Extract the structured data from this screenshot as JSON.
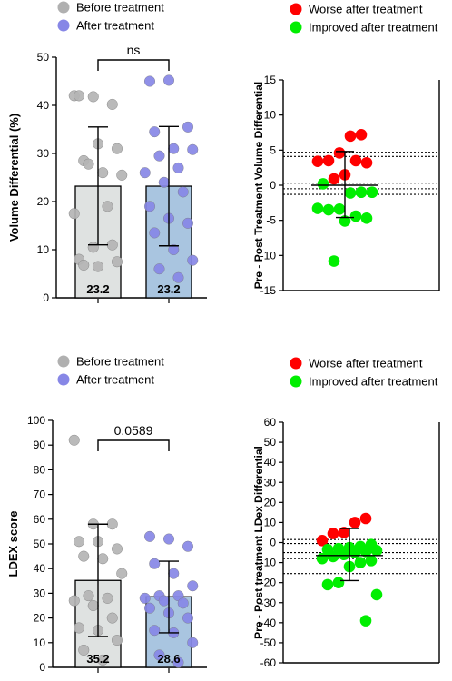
{
  "chart_data": [
    {
      "type": "bar",
      "ylabel": "Volume Differential (%)",
      "ylim": [
        0,
        50
      ],
      "yticks": [
        0,
        10,
        20,
        30,
        40,
        50
      ],
      "categories": [
        "Before treatment",
        "After treatment"
      ],
      "legend": [
        {
          "label": "Before treatment",
          "color": "#b0b0b0"
        },
        {
          "label": "After treatment",
          "color": "#8787e6"
        }
      ],
      "series": [
        {
          "name": "Before treatment",
          "mean": 23.2,
          "mean_label": "23.2",
          "err_low": 11.0,
          "err_high": 35.5,
          "bar_color": "#dfe2e1",
          "point_color": "#b4b4b4",
          "points": [
            42,
            41.8,
            40.2,
            42,
            32,
            31,
            28.5,
            26,
            25.5,
            27.8,
            19,
            17.5,
            10.5,
            11,
            8,
            6.5,
            7.5,
            6.8
          ]
        },
        {
          "name": "After treatment",
          "mean": 23.2,
          "mean_label": "23.2",
          "err_low": 10.8,
          "err_high": 35.6,
          "bar_color": "#a9c5e0",
          "point_color": "#8787e6",
          "points": [
            45,
            45.2,
            35.5,
            34.5,
            31,
            30.8,
            29.5,
            27,
            26,
            24,
            22,
            19,
            16.5,
            15.5,
            13.5,
            10,
            7.8,
            6,
            4.2
          ]
        }
      ],
      "significance": "ns"
    },
    {
      "type": "scatter",
      "ylabel": "Pre - Post Treatment Volume Differential",
      "ylim": [
        -15,
        15
      ],
      "yticks": [
        -15,
        -10,
        -5,
        0,
        5,
        10,
        15
      ],
      "legend": [
        {
          "label": "Worse after treatment",
          "color": "#ff0000"
        },
        {
          "label": "Improved after treatment",
          "color": "#00ee00"
        }
      ],
      "mean": 0,
      "err_low": -4.6,
      "err_high": 4.8,
      "reference_lines": [
        4.7,
        4.1,
        0.3,
        -0.5,
        -1.3
      ],
      "worse": [
        7.2,
        7.0,
        4.6,
        3.5,
        3.4,
        3.2,
        3.5,
        1.5,
        0.9
      ],
      "improved": [
        0.2,
        -1.0,
        -1.0,
        -1.1,
        -3.4,
        -3.5,
        -3.3,
        -4.7,
        -4.4,
        -5.1,
        -10.8
      ]
    },
    {
      "type": "bar",
      "ylabel": "LDEX score",
      "ylim": [
        0,
        100
      ],
      "yticks": [
        0,
        10,
        20,
        30,
        40,
        50,
        60,
        70,
        80,
        90,
        100
      ],
      "categories": [
        "Before treatment",
        "After treatment"
      ],
      "legend": [
        {
          "label": "Before treatment",
          "color": "#b0b0b0"
        },
        {
          "label": "After treatment",
          "color": "#8787e6"
        }
      ],
      "series": [
        {
          "name": "Before treatment",
          "mean": 35.2,
          "mean_label": "35.2",
          "err_low": 12.5,
          "err_high": 58,
          "bar_color": "#dfe2e1",
          "point_color": "#b4b4b4",
          "points": [
            92,
            58,
            58,
            51,
            51,
            48,
            45,
            44,
            38,
            29,
            28,
            27,
            25,
            20,
            16,
            15,
            11,
            7,
            3
          ]
        },
        {
          "name": "After treatment",
          "mean": 28.6,
          "mean_label": "28.6",
          "err_low": 14,
          "err_high": 43,
          "bar_color": "#a9c5e0",
          "point_color": "#8787e6",
          "points": [
            53,
            52,
            49,
            42,
            38,
            33,
            29,
            29,
            28,
            27,
            26,
            24,
            22,
            20,
            15,
            14,
            10,
            5,
            2
          ]
        }
      ],
      "significance": "0.0589"
    },
    {
      "type": "scatter",
      "ylabel": "Pre - Post treatment LDex Differential",
      "ylim": [
        -60,
        60
      ],
      "yticks": [
        -60,
        -50,
        -40,
        -30,
        -20,
        -10,
        0,
        10,
        20,
        30,
        40,
        50,
        60
      ],
      "legend": [
        {
          "label": "Worse after treatment",
          "color": "#ff0000"
        },
        {
          "label": "Improved after treatment",
          "color": "#00ee00"
        }
      ],
      "mean": -6.5,
      "err_low": -19,
      "err_high": 7,
      "reference_lines": [
        1.5,
        -0.5,
        -5,
        -8,
        -15.5
      ],
      "worse": [
        12,
        10,
        5,
        4.5,
        1
      ],
      "improved": [
        -1,
        -2,
        -2.5,
        -3,
        -3.5,
        -4,
        -4.5,
        -5,
        -6,
        -7,
        -8,
        -9,
        -10,
        -12,
        -20,
        -21,
        -26,
        -39
      ]
    }
  ]
}
